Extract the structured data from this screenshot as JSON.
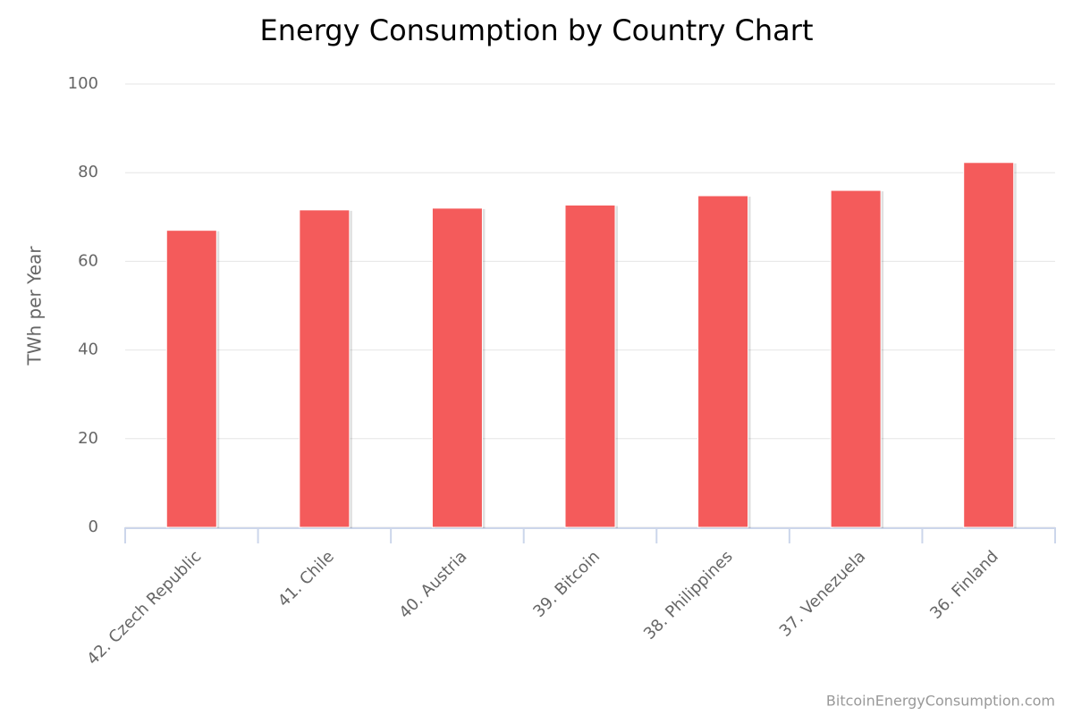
{
  "chart_data": {
    "type": "bar",
    "title": "Energy Consumption by Country Chart",
    "y_label": "TWh per Year",
    "credits": "BitcoinEnergyConsumption.com",
    "categories": [
      "42. Czech Republic",
      "41. Chile",
      "40. Austria",
      "39. Bitcoin",
      "38. Philippines",
      "37. Venezuela",
      "36. Finland"
    ],
    "values": [
      67,
      71.6,
      72,
      72.7,
      74.8,
      76,
      82.3
    ],
    "color": "#f45b5b",
    "ylim": [
      0,
      100
    ],
    "yticks": [
      0,
      20,
      40,
      60,
      80,
      100
    ],
    "grid": true
  }
}
